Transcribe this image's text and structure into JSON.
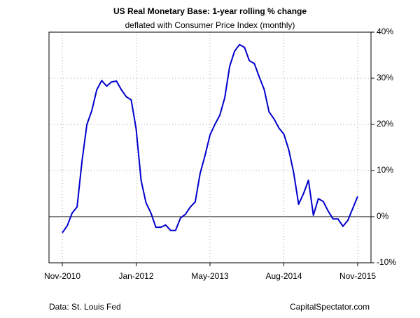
{
  "chart_data": {
    "type": "line",
    "title": "US Real Monetary Base: 1-year rolling % change",
    "subtitle": "deflated with Consumer Price Index (monthly)",
    "source": "Data: St. Louis Fed",
    "credit": "CapitalSpectator.com",
    "categories": [
      "Nov-2010",
      null,
      null,
      null,
      null,
      null,
      null,
      null,
      null,
      null,
      null,
      null,
      null,
      null,
      null,
      "Jan-2012",
      null,
      null,
      null,
      null,
      null,
      null,
      null,
      null,
      null,
      null,
      null,
      null,
      null,
      null,
      "May-2013",
      null,
      null,
      null,
      null,
      null,
      null,
      null,
      null,
      null,
      null,
      null,
      null,
      null,
      null,
      "Aug-2014",
      null,
      null,
      null,
      null,
      null,
      null,
      null,
      null,
      null,
      null,
      null,
      null,
      null,
      null,
      "Nov-2015"
    ],
    "values": [
      -3.5,
      -2,
      0.8,
      2.1,
      12,
      20,
      23,
      27.5,
      29.5,
      28.3,
      29.2,
      29.4,
      27.5,
      26,
      25.3,
      19,
      7.9,
      3,
      0.8,
      -2.3,
      -2.3,
      -1.8,
      -3,
      -3,
      -0.3,
      0.5,
      2.1,
      3.2,
      9.4,
      13.3,
      17.7,
      20,
      22,
      25.8,
      32.6,
      35.9,
      37.3,
      36.7,
      33.8,
      33.2,
      30.3,
      27.6,
      22.7,
      21.2,
      19.2,
      17.9,
      14.5,
      9.5,
      2.7,
      5,
      7.9,
      0.3,
      3.9,
      3.3,
      1.2,
      -0.5,
      -0.5,
      -2.1,
      -0.8,
      1.8,
      4.4
    ],
    "color": "#0000cc",
    "ylim": [
      -10,
      40
    ],
    "yticks": [
      {
        "value": -10,
        "label": "-10%"
      },
      {
        "value": 0,
        "label": "0%"
      },
      {
        "value": 10,
        "label": "10%"
      },
      {
        "value": 20,
        "label": "20%"
      },
      {
        "value": 30,
        "label": "30%"
      },
      {
        "value": 40,
        "label": "40%"
      }
    ],
    "grid": true
  }
}
